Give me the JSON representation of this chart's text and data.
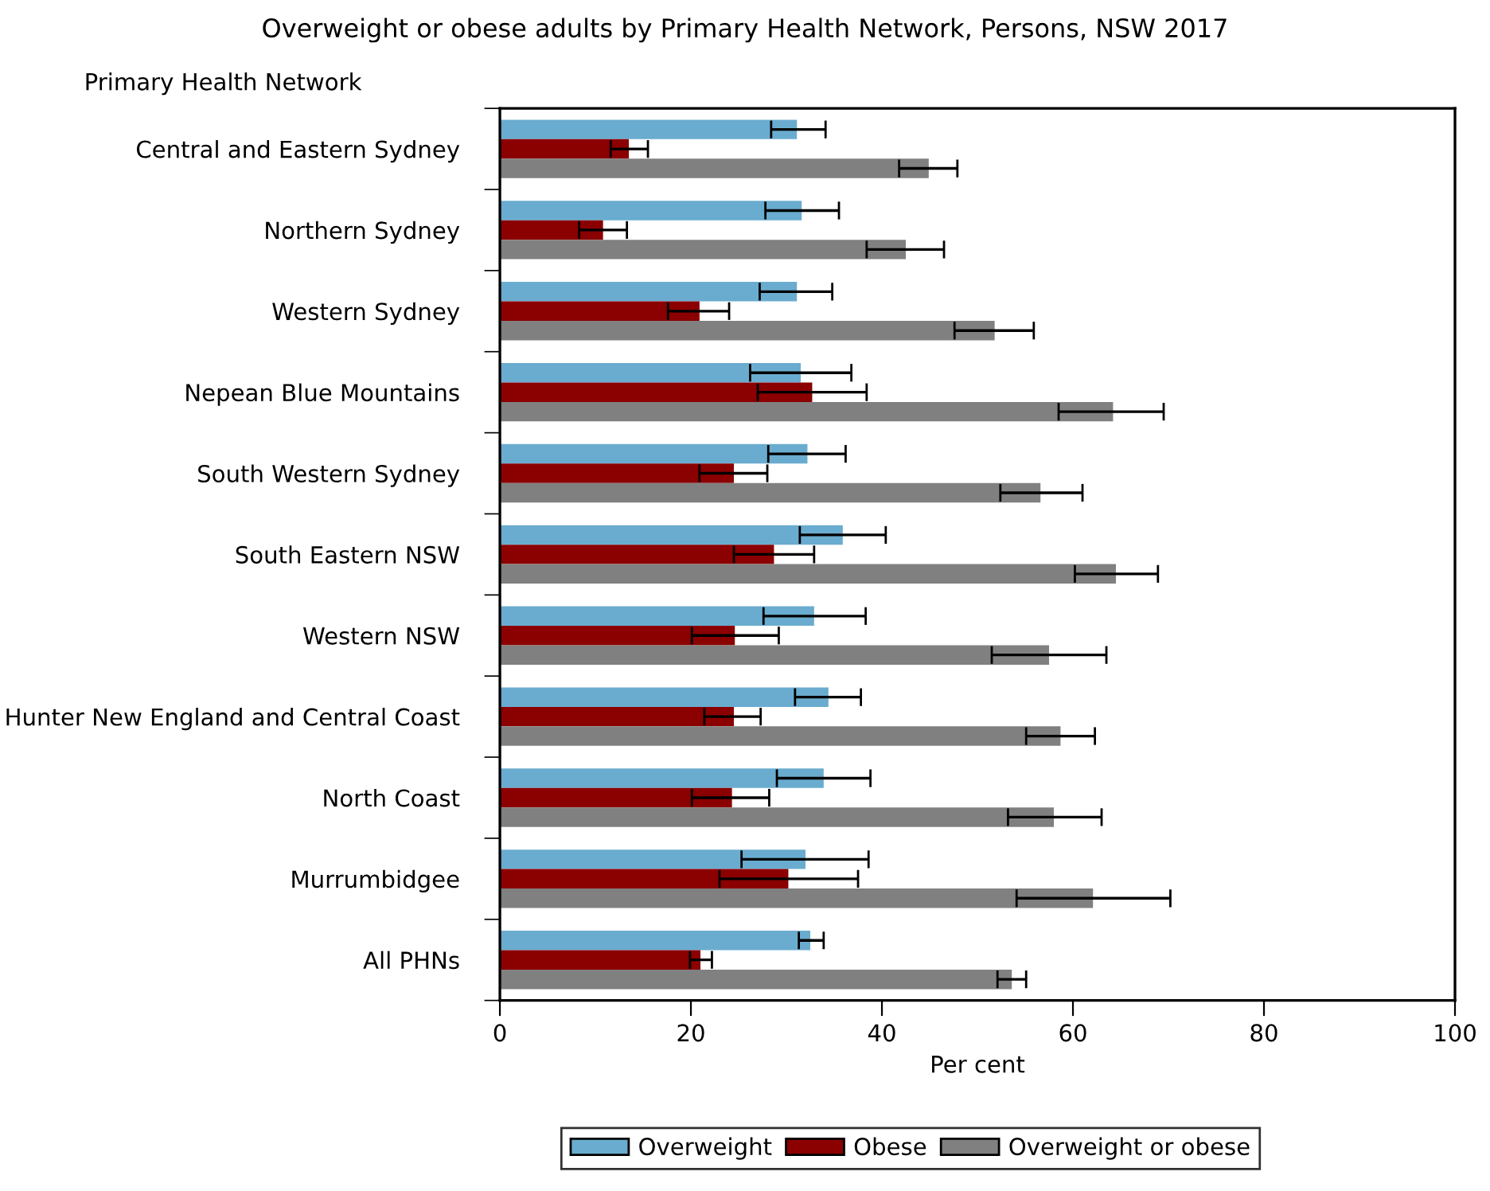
{
  "chart_data": {
    "type": "bar",
    "orientation": "horizontal",
    "title": "Overweight or obese adults by Primary Health Network, Persons, NSW 2017",
    "ylabel": "Primary Health Network",
    "xlabel": "Per cent",
    "categories": [
      "Central and Eastern Sydney",
      "Northern Sydney",
      "Western Sydney",
      "Nepean Blue Mountains",
      "South Western Sydney",
      "South Eastern NSW",
      "Western NSW",
      "Hunter New England and Central Coast",
      "North Coast",
      "Murrumbidgee",
      "All PHNs"
    ],
    "series": [
      {
        "name": "Overweight",
        "color": "#6aaccf",
        "values": [
          31.1,
          31.6,
          31.1,
          31.5,
          32.2,
          35.9,
          32.9,
          34.4,
          33.9,
          32.0,
          32.5
        ],
        "errors": [
          [
            28.4,
            34.1
          ],
          [
            27.8,
            35.5
          ],
          [
            27.2,
            34.8
          ],
          [
            26.2,
            36.8
          ],
          [
            28.1,
            36.2
          ],
          [
            31.4,
            40.4
          ],
          [
            27.6,
            38.3
          ],
          [
            30.9,
            37.8
          ],
          [
            29.0,
            38.8
          ],
          [
            25.3,
            38.6
          ],
          [
            31.3,
            33.9
          ]
        ]
      },
      {
        "name": "Obese",
        "color": "#8b0000",
        "values": [
          13.5,
          10.8,
          20.9,
          32.7,
          24.5,
          28.7,
          24.6,
          24.5,
          24.3,
          30.2,
          21.0
        ],
        "errors": [
          [
            11.6,
            15.5
          ],
          [
            8.3,
            13.3
          ],
          [
            17.6,
            24.0
          ],
          [
            27.0,
            38.4
          ],
          [
            20.9,
            28.0
          ],
          [
            24.5,
            32.9
          ],
          [
            20.1,
            29.2
          ],
          [
            21.4,
            27.3
          ],
          [
            20.1,
            28.2
          ],
          [
            23.0,
            37.5
          ],
          [
            19.9,
            22.2
          ]
        ]
      },
      {
        "name": "Overweight or obese",
        "color": "#808080",
        "values": [
          44.9,
          42.5,
          51.8,
          64.2,
          56.6,
          64.5,
          57.5,
          58.7,
          58.0,
          62.1,
          53.6
        ],
        "errors": [
          [
            41.8,
            47.9
          ],
          [
            38.4,
            46.5
          ],
          [
            47.6,
            55.9
          ],
          [
            58.5,
            69.5
          ],
          [
            52.4,
            61.0
          ],
          [
            60.2,
            68.9
          ],
          [
            51.5,
            63.5
          ],
          [
            55.1,
            62.3
          ],
          [
            53.2,
            63.0
          ],
          [
            54.1,
            70.2
          ],
          [
            52.1,
            55.1
          ]
        ]
      }
    ],
    "xlim": [
      0,
      100
    ],
    "xticks": [
      0,
      20,
      40,
      60,
      80,
      100
    ],
    "grid": false,
    "legend": "bottom"
  }
}
